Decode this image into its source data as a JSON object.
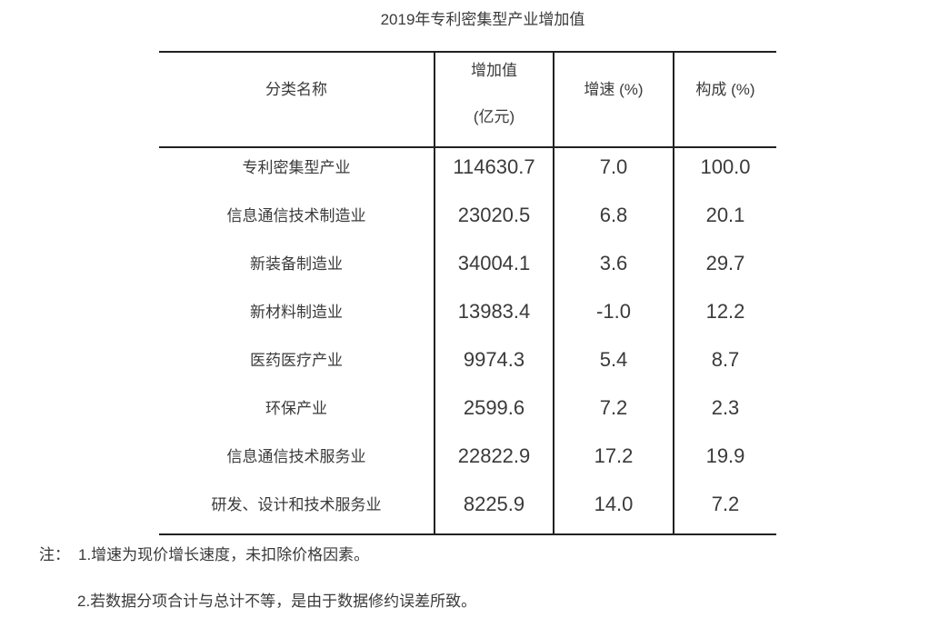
{
  "page_title": "2019年专利密集型产业增加值",
  "table": {
    "headers": {
      "category": "分类名称",
      "value_line1": "增加值",
      "value_line2": "(亿元)",
      "growth": "增速 (%)",
      "share": "构成 (%)"
    },
    "rows": [
      {
        "category": "专利密集型产业",
        "value": "114630.7",
        "growth": "7.0",
        "share": "100.0"
      },
      {
        "category": "信息通信技术制造业",
        "value": "23020.5",
        "growth": "6.8",
        "share": "20.1"
      },
      {
        "category": "新装备制造业",
        "value": "34004.1",
        "growth": "3.6",
        "share": "29.7"
      },
      {
        "category": "新材料制造业",
        "value": "13983.4",
        "growth": "-1.0",
        "share": "12.2"
      },
      {
        "category": "医药医疗产业",
        "value": "9974.3",
        "growth": "5.4",
        "share": "8.7"
      },
      {
        "category": "环保产业",
        "value": "2599.6",
        "growth": "7.2",
        "share": "2.3"
      },
      {
        "category": "信息通信技术服务业",
        "value": "22822.9",
        "growth": "17.2",
        "share": "19.9"
      },
      {
        "category": "研发、设计和技术服务业",
        "value": "8225.9",
        "growth": "14.0",
        "share": "7.2"
      }
    ]
  },
  "notes": {
    "prefix": "注：",
    "items": [
      "1.增速为现价增长速度，未扣除价格因素。",
      "2.若数据分项合计与总计不等，是由于数据修约误差所致。"
    ]
  },
  "colors": {
    "text": "#3a3a3a",
    "border": "#212121",
    "background": "#ffffff"
  },
  "chart_data": {
    "type": "table",
    "title": "2019年专利密集型产业增加值",
    "columns": [
      "分类名称",
      "增加值(亿元)",
      "增速(%)",
      "构成(%)"
    ],
    "rows": [
      [
        "专利密集型产业",
        114630.7,
        7.0,
        100.0
      ],
      [
        "信息通信技术制造业",
        23020.5,
        6.8,
        20.1
      ],
      [
        "新装备制造业",
        34004.1,
        3.6,
        29.7
      ],
      [
        "新材料制造业",
        13983.4,
        -1.0,
        12.2
      ],
      [
        "医药医疗产业",
        9974.3,
        5.4,
        8.7
      ],
      [
        "环保产业",
        2599.6,
        7.2,
        2.3
      ],
      [
        "信息通信技术服务业",
        22822.9,
        17.2,
        19.9
      ],
      [
        "研发、设计和技术服务业",
        8225.9,
        14.0,
        7.2
      ]
    ]
  }
}
